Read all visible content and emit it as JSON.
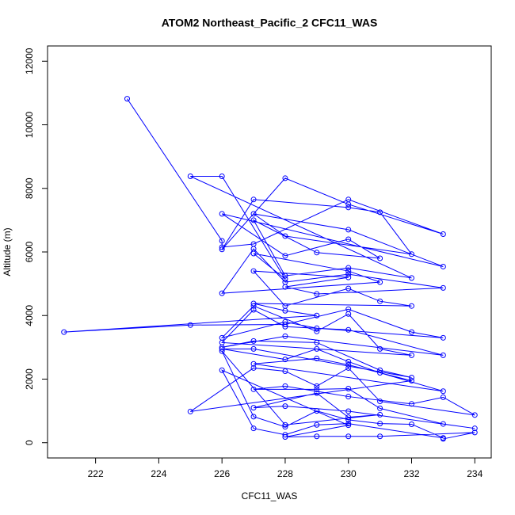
{
  "chart_data": {
    "type": "line",
    "title": "ATOM2 Northeast_Pacific_2 CFC11_WAS",
    "x_label": "CFC11_WAS",
    "y_label": "Altitude (m)",
    "xlim": [
      220.48,
      234.52
    ],
    "ylim": [
      -480,
      12480
    ],
    "xticks": [
      222,
      224,
      226,
      228,
      230,
      232,
      234
    ],
    "yticks": [
      0,
      2000,
      4000,
      6000,
      8000,
      10000,
      12000
    ],
    "x": [
      223,
      226,
      226,
      227,
      230,
      233,
      230,
      228,
      226,
      227,
      230,
      231,
      232,
      228,
      227,
      230,
      233,
      226,
      228,
      230,
      231,
      229,
      227,
      228,
      230,
      232,
      225,
      226,
      228,
      227,
      230,
      231,
      226,
      227,
      228,
      230,
      233,
      229,
      228,
      230,
      227,
      228,
      230,
      231,
      232,
      227,
      228,
      229,
      221,
      225,
      228,
      230,
      232,
      233,
      229,
      228,
      226,
      227,
      229,
      230,
      231,
      232,
      226,
      227,
      228,
      230,
      233,
      228,
      226,
      227,
      229,
      231,
      232,
      227,
      226,
      228,
      229,
      230,
      231,
      233,
      227,
      229,
      230,
      232,
      225,
      227,
      228,
      229,
      230,
      231,
      234,
      233,
      232,
      230,
      228,
      227,
      229,
      230,
      231,
      233,
      234,
      230,
      228,
      227,
      229,
      230,
      231,
      228,
      226,
      227,
      228,
      229,
      230,
      231,
      232,
      233,
      230,
      229,
      228,
      227,
      226,
      230,
      228,
      229,
      230,
      231,
      234,
      233
    ],
    "series": [
      {
        "name": "CFC11_WAS",
        "color": "#0000ff",
        "values": [
          10820,
          6350,
          6150,
          6250,
          7650,
          6560,
          7500,
          8320,
          6080,
          7650,
          7400,
          7250,
          5930,
          6500,
          7200,
          6700,
          5540,
          7200,
          5880,
          6400,
          5800,
          5980,
          7000,
          5250,
          5500,
          5180,
          8380,
          8380,
          5150,
          5950,
          5400,
          5050,
          4700,
          6100,
          5050,
          5300,
          4870,
          4680,
          4900,
          5200,
          5400,
          4300,
          4850,
          4450,
          4300,
          4380,
          4150,
          4000,
          3480,
          3700,
          3720,
          4200,
          3480,
          3300,
          3600,
          3800,
          3300,
          4300,
          3500,
          4050,
          2950,
          2750,
          3150,
          4180,
          3650,
          3550,
          2750,
          3350,
          3000,
          3200,
          3150,
          2280,
          2050,
          2950,
          2950,
          2620,
          2950,
          2550,
          2200,
          1620,
          2480,
          2650,
          2450,
          1950,
          980,
          2350,
          2250,
          1780,
          2350,
          1300,
          870,
          1430,
          1220,
          1450,
          1780,
          1680,
          1680,
          1700,
          1080,
          590,
          450,
          990,
          1150,
          1100,
          1560,
          800,
          880,
          560,
          2880,
          820,
          500,
          1000,
          720,
          600,
          580,
          150,
          600,
          560,
          250,
          450,
          2280,
          550,
          180,
          200,
          200,
          200,
          320,
          120
        ]
      }
    ],
    "grid": false
  }
}
